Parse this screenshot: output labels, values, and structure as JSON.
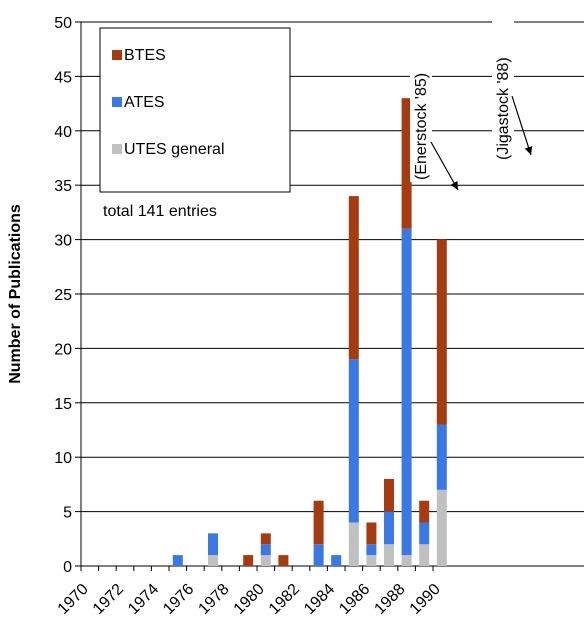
{
  "chart_data": {
    "type": "bar",
    "stacked": true,
    "title": "",
    "xlabel": "",
    "ylabel": "Number of Publications",
    "ylim": [
      0,
      50
    ],
    "yticks": [
      0,
      5,
      10,
      15,
      20,
      25,
      30,
      35,
      40,
      45,
      50
    ],
    "xticks": [
      "1970",
      "1972",
      "1974",
      "1976",
      "1978",
      "1980",
      "1982",
      "1984",
      "1986",
      "1988",
      "1990"
    ],
    "categories": [
      "1970",
      "1971",
      "1972",
      "1973",
      "1974",
      "1975",
      "1976",
      "1977",
      "1978",
      "1979",
      "1980",
      "1981",
      "1982",
      "1983",
      "1984",
      "1985",
      "1986",
      "1987",
      "1988",
      "1989",
      "1990"
    ],
    "grid": "horizontal",
    "legend_position": "top-left",
    "note": "total 141 entries",
    "series": [
      {
        "name": "UTES general",
        "color": "#c0c0c0",
        "values": [
          0,
          0,
          0,
          0,
          0,
          0,
          0,
          1,
          0,
          0,
          1,
          0,
          0,
          0,
          0,
          4,
          1,
          2,
          1,
          2,
          7
        ]
      },
      {
        "name": "ATES",
        "color": "#3a78e6",
        "values": [
          0,
          0,
          0,
          0,
          0,
          1,
          0,
          2,
          0,
          0,
          1,
          0,
          0,
          2,
          1,
          15,
          1,
          3,
          30,
          2,
          6
        ]
      },
      {
        "name": "BTES",
        "color": "#a63b12",
        "values": [
          0,
          0,
          0,
          0,
          0,
          0,
          0,
          0,
          0,
          1,
          1,
          1,
          0,
          4,
          0,
          15,
          2,
          3,
          12,
          2,
          17
        ]
      }
    ],
    "annotations": [
      {
        "text": "(Enerstock '85)",
        "category": "1985",
        "value": 34
      },
      {
        "text": "(Jigastock '88)",
        "category": "1988",
        "value": 43
      }
    ]
  }
}
